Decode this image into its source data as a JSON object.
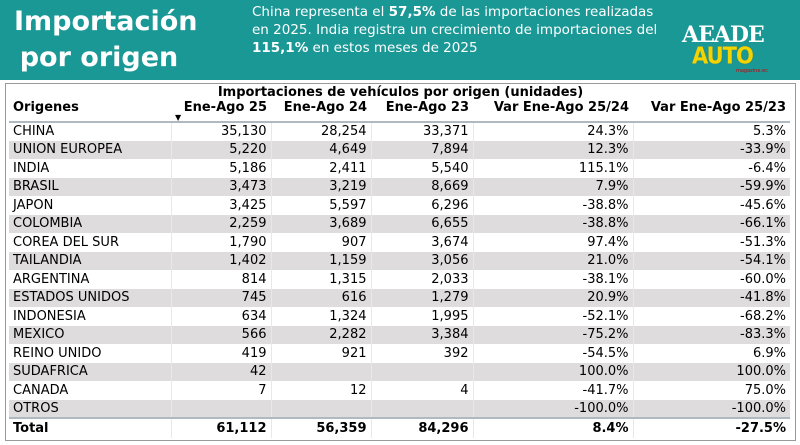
{
  "header": {
    "title_line1": "Importación",
    "title_line2": "por origen",
    "desc_1": "China representa el ",
    "desc_2": "57,5%",
    "desc_3": " de las importaciones realizadas en 2025. India registra un crecimiento de importaciones del ",
    "desc_4": "115,1%",
    "desc_5": " en estos meses de 2025",
    "logo_top": "AEADE",
    "logo_bottom": "AUTO",
    "logo_sub": "magazine.ec"
  },
  "table": {
    "title": "Importaciones de vehículos por origen (unidades)",
    "columns": [
      "Origenes",
      "Ene-Ago 25",
      "Ene-Ago 24",
      "Ene-Ago 23",
      "Var Ene-Ago 25/24",
      "Var Ene-Ago 25/23"
    ],
    "sort_indicator": "▼",
    "rows": [
      [
        "CHINA",
        "35,130",
        "28,254",
        "33,371",
        "24.3%",
        "5.3%"
      ],
      [
        "UNION EUROPEA",
        "5,220",
        "4,649",
        "7,894",
        "12.3%",
        "-33.9%"
      ],
      [
        "INDIA",
        "5,186",
        "2,411",
        "5,540",
        "115.1%",
        "-6.4%"
      ],
      [
        "BRASIL",
        "3,473",
        "3,219",
        "8,669",
        "7.9%",
        "-59.9%"
      ],
      [
        "JAPON",
        "3,425",
        "5,597",
        "6,296",
        "-38.8%",
        "-45.6%"
      ],
      [
        "COLOMBIA",
        "2,259",
        "3,689",
        "6,655",
        "-38.8%",
        "-66.1%"
      ],
      [
        "COREA DEL SUR",
        "1,790",
        "907",
        "3,674",
        "97.4%",
        "-51.3%"
      ],
      [
        "TAILANDIA",
        "1,402",
        "1,159",
        "3,056",
        "21.0%",
        "-54.1%"
      ],
      [
        "ARGENTINA",
        "814",
        "1,315",
        "2,033",
        "-38.1%",
        "-60.0%"
      ],
      [
        "ESTADOS UNIDOS",
        "745",
        "616",
        "1,279",
        "20.9%",
        "-41.8%"
      ],
      [
        "INDONESIA",
        "634",
        "1,324",
        "1,995",
        "-52.1%",
        "-68.2%"
      ],
      [
        "MEXICO",
        "566",
        "2,282",
        "3,384",
        "-75.2%",
        "-83.3%"
      ],
      [
        "REINO UNIDO",
        "419",
        "921",
        "392",
        "-54.5%",
        "6.9%"
      ],
      [
        "SUDAFRICA",
        "42",
        "",
        "",
        "100.0%",
        "100.0%"
      ],
      [
        "CANADA",
        "7",
        "12",
        "4",
        "-41.7%",
        "75.0%"
      ],
      [
        "OTROS",
        "",
        "",
        "",
        "-100.0%",
        "-100.0%"
      ]
    ],
    "total": [
      "Total",
      "61,112",
      "56,359",
      "84,296",
      "8.4%",
      "-27.5%"
    ]
  }
}
